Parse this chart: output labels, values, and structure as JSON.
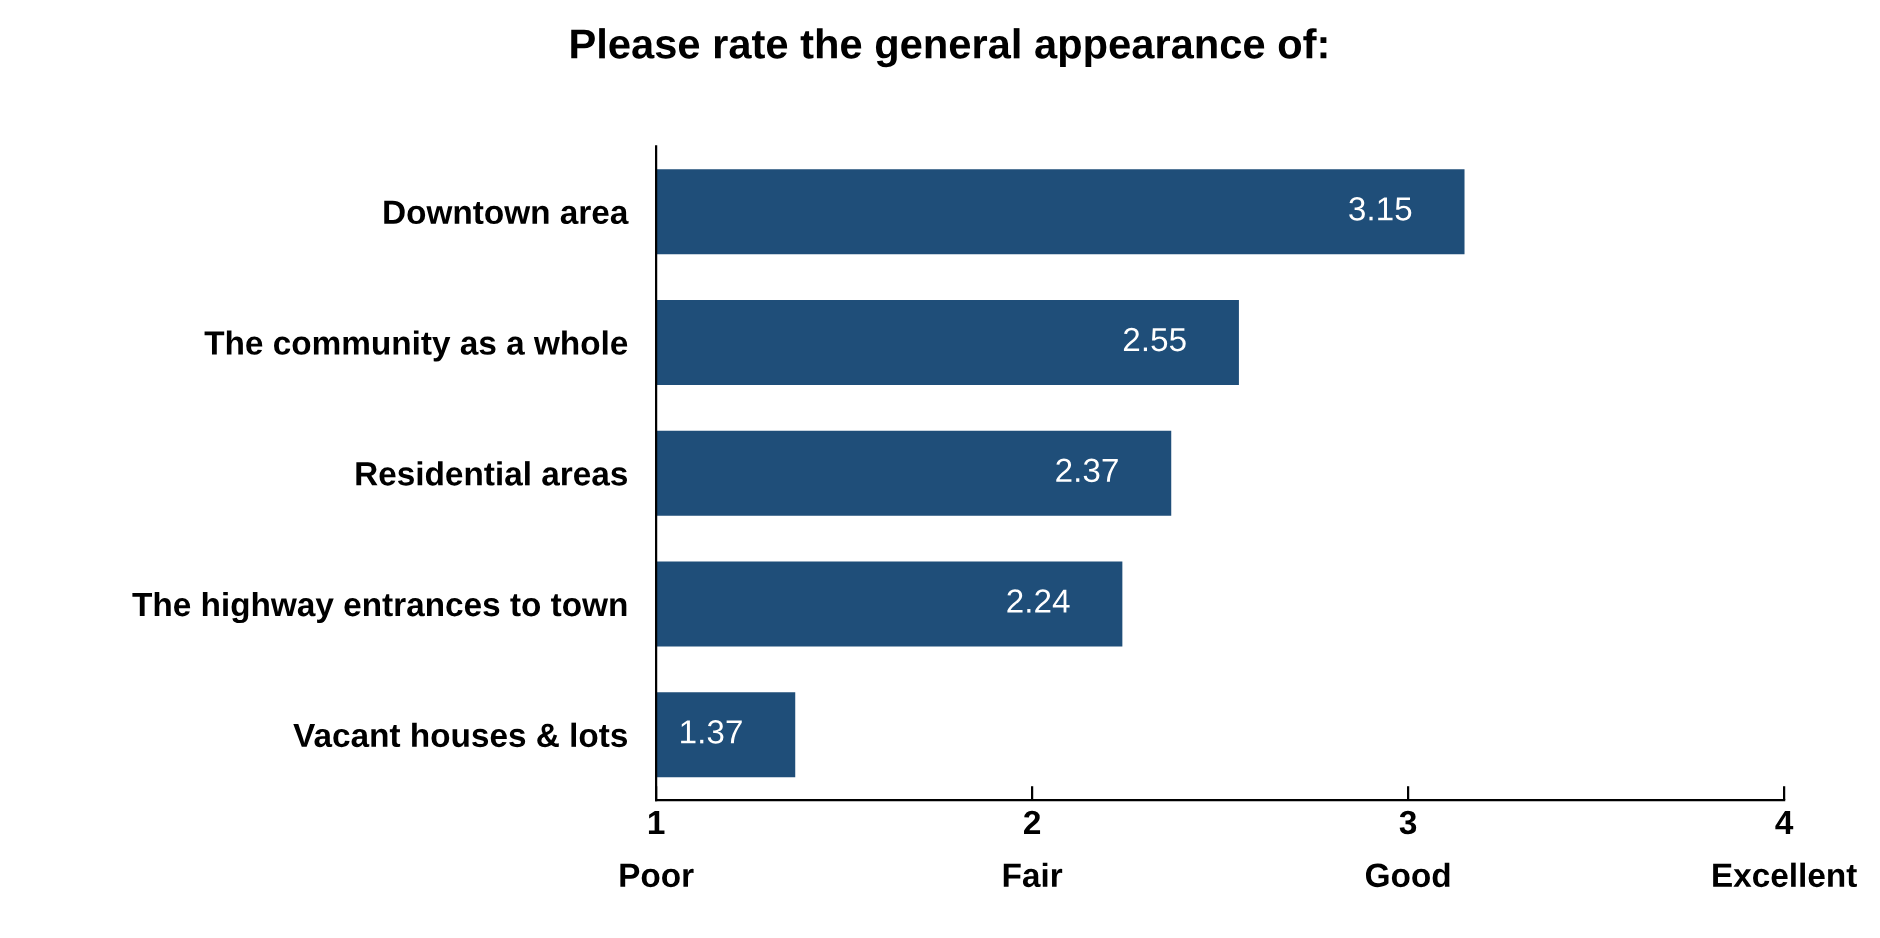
{
  "chart_data": {
    "type": "bar",
    "orientation": "horizontal",
    "title": "Please rate the general appearance of:",
    "categories": [
      "Downtown area",
      "The community as a whole",
      "Residential areas",
      "The highway entrances to town",
      "Vacant houses & lots"
    ],
    "values": [
      3.15,
      2.55,
      2.37,
      2.24,
      1.37
    ],
    "color": "#1f4e79",
    "data_labels": true,
    "xlim": [
      1,
      4
    ],
    "xticks": [
      {
        "value": 1,
        "label": "1\nPoor"
      },
      {
        "value": 2,
        "label": "2\nFair"
      },
      {
        "value": 3,
        "label": "3\nGood"
      },
      {
        "value": 4,
        "label": "4\nExcellent"
      }
    ],
    "grid": false,
    "legend": false
  }
}
